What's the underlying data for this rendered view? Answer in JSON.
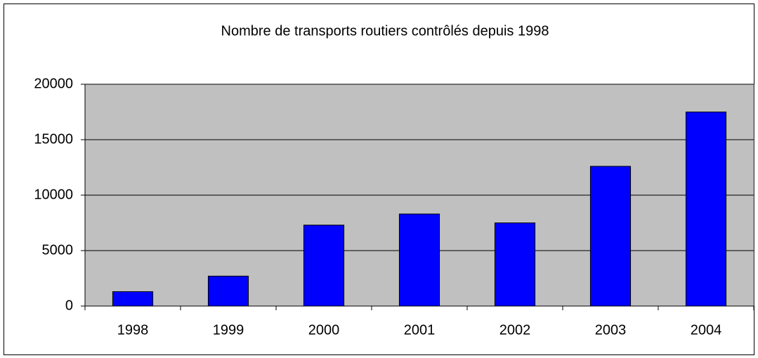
{
  "chart_data": {
    "type": "bar",
    "title": "Nombre de transports routiers contrôlés depuis 1998",
    "categories": [
      "1998",
      "1999",
      "2000",
      "2001",
      "2002",
      "2003",
      "2004"
    ],
    "values": [
      1300,
      2700,
      7300,
      8300,
      7500,
      12600,
      17500
    ],
    "color": "#0000ff",
    "ylim": [
      0,
      20000
    ],
    "yticks": [
      0,
      5000,
      10000,
      15000,
      20000
    ],
    "grid": true
  }
}
